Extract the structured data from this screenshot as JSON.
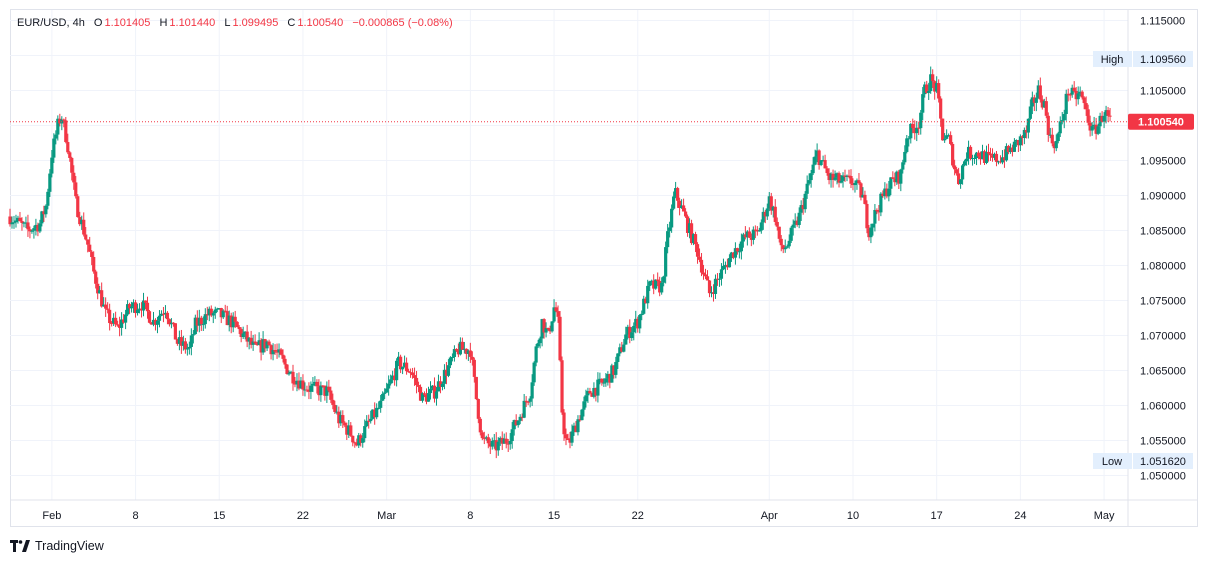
{
  "legend": {
    "symbol": "EUR/USD, 4h",
    "open_label": "O",
    "open": "1.101405",
    "high_label": "H",
    "high": "1.101440",
    "low_label": "L",
    "low": "1.099495",
    "close_label": "C",
    "close": "1.100540",
    "change": "−0.000865 (−0.08%)"
  },
  "brand": {
    "name": "TradingView",
    "logo_icon": "tradingview-logo-icon"
  },
  "colors": {
    "up": "#089981",
    "down": "#f23645",
    "grid": "#f0f3fa",
    "axis_text": "#131722",
    "tag_bg": "#e3effd",
    "price_tag": "#f23645"
  },
  "chart_data": {
    "type": "candlestick",
    "timeframe": "4h",
    "ylim": [
      1.0465,
      1.1165
    ],
    "y_ticks": [
      "1.115000",
      "1.110000",
      "1.105000",
      "1.100000",
      "1.095000",
      "1.090000",
      "1.085000",
      "1.080000",
      "1.075000",
      "1.070000",
      "1.065000",
      "1.060000",
      "1.055000",
      "1.050000"
    ],
    "x_labels": [
      {
        "label": "Feb",
        "day": 1.5
      },
      {
        "label": "8",
        "day": 8.5
      },
      {
        "label": "15",
        "day": 15.5
      },
      {
        "label": "22",
        "day": 22.5
      },
      {
        "label": "Mar",
        "day": 29.5
      },
      {
        "label": "8",
        "day": 36.5
      },
      {
        "label": "15",
        "day": 43.5
      },
      {
        "label": "22",
        "day": 50.5
      },
      {
        "label": "Apr",
        "day": 61.5
      },
      {
        "label": "10",
        "day": 68.5
      },
      {
        "label": "17",
        "day": 75.5
      },
      {
        "label": "24",
        "day": 82.5
      },
      {
        "label": "May",
        "day": 89.5
      }
    ],
    "x_range_days": [
      -2.0,
      91.5
    ],
    "high_tag": {
      "label": "High",
      "value": "1.109560"
    },
    "low_tag": {
      "label": "Low",
      "value": "1.051620"
    },
    "last_price": {
      "value": "1.100540",
      "numeric": 1.10054
    },
    "path_points": [
      [
        -2.0,
        1.087
      ],
      [
        -0.5,
        1.085
      ],
      [
        0.5,
        1.086
      ],
      [
        1.0,
        1.0885
      ],
      [
        1.5,
        1.096
      ],
      [
        2.0,
        1.1
      ],
      [
        2.3,
        1.1015
      ],
      [
        2.8,
        1.0975
      ],
      [
        3.5,
        1.089
      ],
      [
        4.5,
        1.083
      ],
      [
        5.0,
        1.079
      ],
      [
        5.5,
        1.076
      ],
      [
        6.0,
        1.073
      ],
      [
        7.0,
        1.071
      ],
      [
        8.0,
        1.074
      ],
      [
        9.0,
        1.0745
      ],
      [
        10.0,
        1.072
      ],
      [
        11.0,
        1.074
      ],
      [
        12.0,
        1.069
      ],
      [
        13.0,
        1.068
      ],
      [
        13.5,
        1.0715
      ],
      [
        14.5,
        1.073
      ],
      [
        15.5,
        1.073
      ],
      [
        16.5,
        1.072
      ],
      [
        17.5,
        1.07
      ],
      [
        18.5,
        1.068
      ],
      [
        19.5,
        1.069
      ],
      [
        20.5,
        1.067
      ],
      [
        21.5,
        1.0645
      ],
      [
        22.5,
        1.063
      ],
      [
        23.0,
        1.0625
      ],
      [
        24.5,
        1.062
      ],
      [
        25.5,
        1.058
      ],
      [
        26.5,
        1.056
      ],
      [
        27.0,
        1.0545
      ],
      [
        28.0,
        1.0575
      ],
      [
        29.0,
        1.06
      ],
      [
        30.0,
        1.064
      ],
      [
        30.5,
        1.066
      ],
      [
        31.5,
        1.065
      ],
      [
        32.5,
        1.061
      ],
      [
        33.5,
        1.062
      ],
      [
        34.5,
        1.065
      ],
      [
        35.5,
        1.068
      ],
      [
        36.5,
        1.068
      ],
      [
        37.0,
        1.061
      ],
      [
        37.5,
        1.055
      ],
      [
        38.5,
        1.054
      ],
      [
        39.5,
        1.055
      ],
      [
        40.5,
        1.058
      ],
      [
        41.5,
        1.062
      ],
      [
        42.0,
        1.068
      ],
      [
        42.5,
        1.072
      ],
      [
        43.0,
        1.07
      ],
      [
        43.5,
        1.074
      ],
      [
        43.8,
        1.073
      ],
      [
        44.2,
        1.058
      ],
      [
        44.6,
        1.054
      ],
      [
        45.5,
        1.058
      ],
      [
        46.5,
        1.062
      ],
      [
        47.5,
        1.063
      ],
      [
        48.5,
        1.065
      ],
      [
        49.5,
        1.07
      ],
      [
        50.5,
        1.072
      ],
      [
        51.5,
        1.077
      ],
      [
        52.5,
        1.077
      ],
      [
        53.0,
        1.084
      ],
      [
        53.6,
        1.0905
      ],
      [
        54.2,
        1.088
      ],
      [
        54.6,
        1.086
      ],
      [
        55.5,
        1.082
      ],
      [
        56.5,
        1.076
      ],
      [
        57.5,
        1.079
      ],
      [
        58.5,
        1.082
      ],
      [
        59.5,
        1.084
      ],
      [
        60.5,
        1.0845
      ],
      [
        61.0,
        1.087
      ],
      [
        61.5,
        1.0895
      ],
      [
        62.0,
        1.087
      ],
      [
        62.5,
        1.082
      ],
      [
        63.0,
        1.083
      ],
      [
        64.0,
        1.087
      ],
      [
        65.0,
        1.093
      ],
      [
        65.5,
        1.096
      ],
      [
        66.5,
        1.0925
      ],
      [
        67.5,
        1.092
      ],
      [
        68.5,
        1.092
      ],
      [
        69.3,
        1.09
      ],
      [
        69.8,
        1.085
      ],
      [
        70.5,
        1.088
      ],
      [
        71.5,
        1.0915
      ],
      [
        72.5,
        1.093
      ],
      [
        73.0,
        1.0985
      ],
      [
        74.0,
        1.1005
      ],
      [
        74.5,
        1.105
      ],
      [
        75.0,
        1.1065
      ],
      [
        75.5,
        1.105
      ],
      [
        76.0,
        1.0985
      ],
      [
        76.5,
        1.098
      ],
      [
        77.0,
        1.094
      ],
      [
        77.3,
        1.092
      ],
      [
        78.0,
        1.096
      ],
      [
        79.0,
        1.096
      ],
      [
        80.0,
        1.095
      ],
      [
        81.0,
        1.0955
      ],
      [
        82.0,
        1.097
      ],
      [
        82.5,
        1.098
      ],
      [
        83.0,
        1.099
      ],
      [
        83.5,
        1.103
      ],
      [
        84.0,
        1.105
      ],
      [
        84.5,
        1.103
      ],
      [
        85.0,
        1.098
      ],
      [
        85.5,
        1.0975
      ],
      [
        86.0,
        1.101
      ],
      [
        86.5,
        1.105
      ],
      [
        87.0,
        1.104
      ],
      [
        87.5,
        1.1045
      ],
      [
        88.0,
        1.102
      ],
      [
        88.5,
        1.099
      ],
      [
        89.0,
        1.1
      ],
      [
        89.5,
        1.102
      ],
      [
        90.0,
        1.1005
      ]
    ]
  }
}
